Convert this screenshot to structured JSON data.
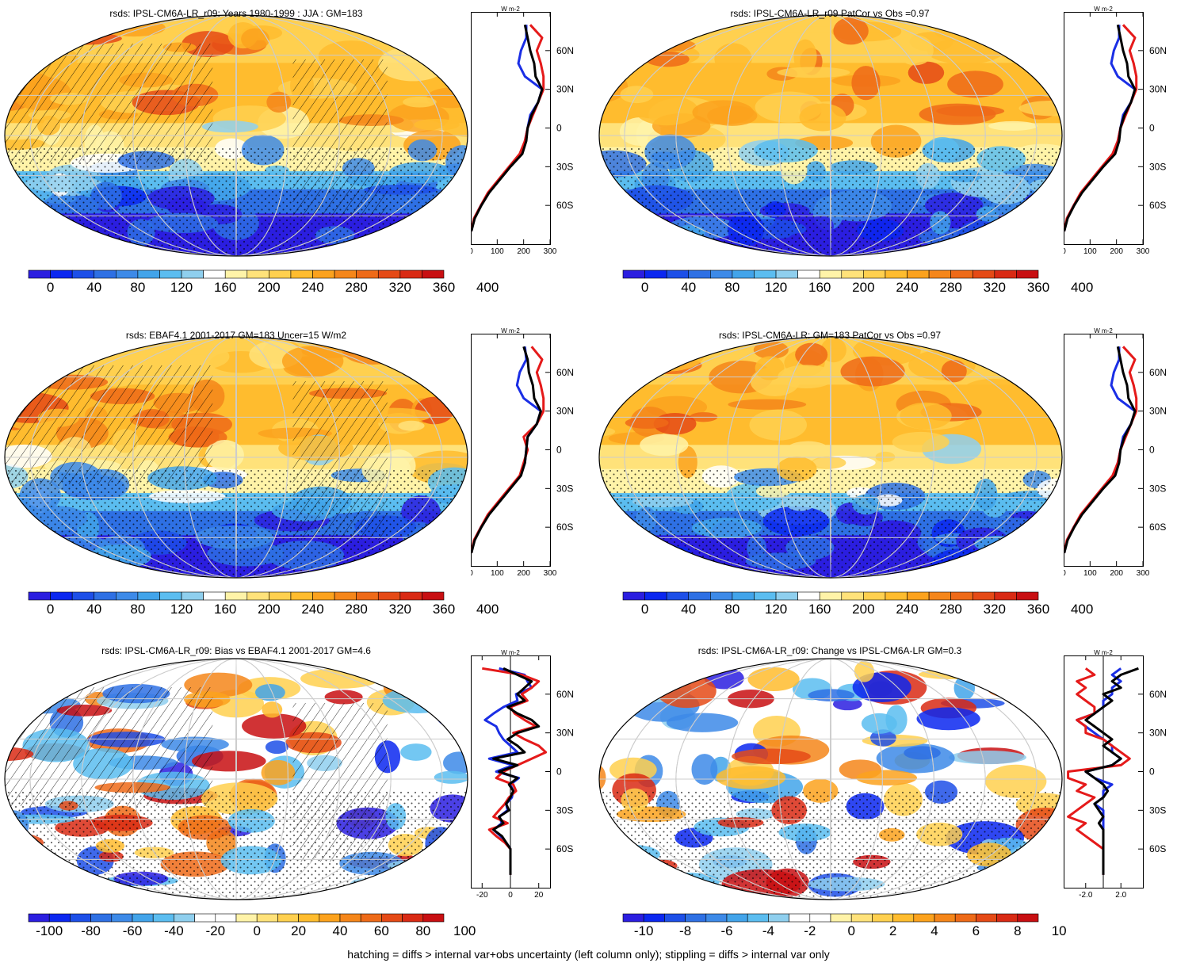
{
  "footnote": "hatching = diffs > internal var+obs uncertainty (left column only); stippling = diffs > internal var only",
  "colors": {
    "absolute_scale": [
      "#2b1ee0",
      "#0b27f0",
      "#1d4fe8",
      "#2e70e4",
      "#3d8ae8",
      "#42a4ea",
      "#5bbdf0",
      "#8fcfee",
      "#ffffff",
      "#fff3a8",
      "#ffe27a",
      "#ffd04f",
      "#ffbc2e",
      "#fca21d",
      "#f5861a",
      "#ee6a18",
      "#e54a16",
      "#d92a14",
      "#c80f12"
    ],
    "diff_scale": [
      "#2b1ee0",
      "#0b27f0",
      "#1d4fe8",
      "#2e70e4",
      "#3d8ae8",
      "#42a4ea",
      "#5bbdf0",
      "#8fcfee",
      "#ffffff",
      "#ffffff",
      "#fff3a8",
      "#ffe27a",
      "#ffd04f",
      "#ffbc2e",
      "#fca21d",
      "#f5861a",
      "#ee6a18",
      "#e54a16",
      "#d92a14",
      "#c80f12"
    ],
    "model_line": "#000000",
    "obs_line": "#e51a1a",
    "ref_line": "#1a2ee5"
  },
  "chart_data": [
    {
      "type": "heatmap",
      "title": "rsds: IPSL-CM6A-LR_r09: Years 1980-1999 : JJA : GM=183",
      "colorbar_ticks": [
        "0",
        "40",
        "80",
        "120",
        "160",
        "200",
        "240",
        "280",
        "320",
        "360",
        "400"
      ],
      "zonal_profile": {
        "unit": "W m-2",
        "x_ticks": [
          "0",
          "100",
          "200",
          "300"
        ],
        "y_ticks": [
          "60N",
          "30N",
          "0",
          "30S",
          "60S"
        ],
        "xlim": [
          0,
          300
        ],
        "lat": [
          80,
          70,
          60,
          50,
          40,
          30,
          20,
          10,
          0,
          -10,
          -20,
          -30,
          -40,
          -50,
          -60,
          -70,
          -80
        ],
        "series": [
          {
            "values": [
              205,
              215,
              225,
              240,
              245,
              270,
              255,
              230,
              215,
              210,
              195,
              150,
              110,
              70,
              40,
              15,
              2
            ]
          },
          {
            "values": [
              225,
              270,
              250,
              265,
              275,
              275,
              255,
              235,
              215,
              205,
              185,
              145,
              105,
              65,
              38,
              12,
              2
            ]
          },
          {
            "values": [
              210,
              210,
              190,
              180,
              205,
              270,
              255,
              225,
              215,
              205,
              190,
              148,
              108,
              68,
              38,
              13,
              2
            ]
          }
        ]
      }
    },
    {
      "type": "heatmap",
      "title": "rsds: IPSL-CM6A-LR_r09 PatCor vs Obs =0.97",
      "colorbar_ticks": [
        "0",
        "40",
        "80",
        "120",
        "160",
        "200",
        "240",
        "280",
        "320",
        "360",
        "400"
      ],
      "zonal_profile": {
        "unit": "W m-2",
        "x_ticks": [
          "0",
          "100",
          "200",
          "300"
        ],
        "y_ticks": [
          "60N",
          "30N",
          "0",
          "30S",
          "60S"
        ],
        "xlim": [
          0,
          300
        ],
        "lat": [
          80,
          70,
          60,
          50,
          40,
          30,
          20,
          10,
          0,
          -10,
          -20,
          -30,
          -40,
          -50,
          -60,
          -70,
          -80
        ],
        "series": [
          {
            "values": [
              205,
              215,
              225,
              240,
              245,
              270,
              255,
              230,
              215,
              210,
              195,
              150,
              110,
              70,
              40,
              15,
              2
            ]
          },
          {
            "values": [
              225,
              270,
              250,
              265,
              275,
              275,
              255,
              235,
              215,
              205,
              185,
              145,
              105,
              65,
              38,
              12,
              2
            ]
          },
          {
            "values": [
              210,
              210,
              190,
              180,
              205,
              270,
              255,
              225,
              215,
              205,
              190,
              148,
              108,
              68,
              38,
              13,
              2
            ]
          }
        ]
      }
    },
    {
      "type": "heatmap",
      "title": "rsds: EBAF4.1 2001-2017 GM=183 Uncer=15 W/m2",
      "colorbar_ticks": [
        "0",
        "40",
        "80",
        "120",
        "160",
        "200",
        "240",
        "280",
        "320",
        "360",
        "400"
      ],
      "zonal_profile": {
        "unit": "W m-2",
        "x_ticks": [
          "0",
          "100",
          "200",
          "300"
        ],
        "y_ticks": [
          "60N",
          "30N",
          "0",
          "30S",
          "60S"
        ],
        "xlim": [
          0,
          300
        ],
        "lat": [
          80,
          70,
          60,
          50,
          40,
          30,
          20,
          10,
          0,
          -10,
          -20,
          -30,
          -40,
          -50,
          -60,
          -70,
          -80
        ],
        "series": [
          {
            "values": [
              200,
              215,
              220,
              235,
              240,
              265,
              250,
              215,
              210,
              205,
              190,
              150,
              110,
              70,
              40,
              15,
              2
            ]
          },
          {
            "values": [
              230,
              270,
              250,
              265,
              275,
              275,
              250,
              200,
              215,
              200,
              185,
              145,
              105,
              65,
              38,
              12,
              2
            ]
          },
          {
            "values": [
              205,
              210,
              185,
              175,
              200,
              265,
              250,
              215,
              210,
              205,
              188,
              148,
              108,
              68,
              38,
              13,
              2
            ]
          }
        ]
      }
    },
    {
      "type": "heatmap",
      "title": "rsds: IPSL-CM6A-LR: GM=183 PatCor vs Obs =0.97",
      "colorbar_ticks": [
        "0",
        "40",
        "80",
        "120",
        "160",
        "200",
        "240",
        "280",
        "320",
        "360",
        "400"
      ],
      "zonal_profile": {
        "unit": "W m-2",
        "x_ticks": [
          "0",
          "100",
          "200",
          "300"
        ],
        "y_ticks": [
          "60N",
          "30N",
          "0",
          "30S",
          "60S"
        ],
        "xlim": [
          0,
          300
        ],
        "lat": [
          80,
          70,
          60,
          50,
          40,
          30,
          20,
          10,
          0,
          -10,
          -20,
          -30,
          -40,
          -50,
          -60,
          -70,
          -80
        ],
        "series": [
          {
            "values": [
              205,
              215,
              225,
              240,
              245,
              270,
              255,
              230,
              215,
              210,
              195,
              150,
              110,
              70,
              40,
              15,
              2
            ]
          },
          {
            "values": [
              225,
              270,
              250,
              265,
              275,
              275,
              255,
              235,
              215,
              205,
              185,
              145,
              105,
              65,
              38,
              12,
              2
            ]
          },
          {
            "values": [
              210,
              210,
              190,
              180,
              205,
              270,
              255,
              225,
              215,
              205,
              190,
              148,
              108,
              68,
              38,
              13,
              2
            ]
          }
        ]
      }
    },
    {
      "type": "heatmap",
      "title": "rsds: IPSL-CM6A-LR_r09: Bias vs EBAF4.1 2001-2017 GM=4.6",
      "colorbar_ticks": [
        "-100",
        "-80",
        "-60",
        "-40",
        "-20",
        "0",
        "20",
        "40",
        "60",
        "80",
        "100"
      ],
      "zonal_profile": {
        "unit": "W m-2",
        "x_ticks": [
          "-20",
          "0",
          "20"
        ],
        "y_ticks": [
          "60N",
          "30N",
          "0",
          "30S",
          "60S"
        ],
        "xlim": [
          -28,
          28
        ],
        "lat": [
          80,
          75,
          70,
          65,
          60,
          55,
          50,
          45,
          40,
          35,
          30,
          25,
          20,
          15,
          10,
          5,
          0,
          -5,
          -10,
          -15,
          -20,
          -25,
          -30,
          -35,
          -40,
          -45,
          -50,
          -55,
          -60,
          -70,
          -80
        ],
        "series": [
          {
            "values": [
              -5,
              5,
              15,
              10,
              5,
              10,
              -2,
              5,
              15,
              20,
              5,
              -2,
              5,
              10,
              -12,
              5,
              -8,
              5,
              -1,
              2,
              0,
              -3,
              -1,
              -8,
              -5,
              -12,
              -6,
              -3,
              0,
              0,
              0
            ]
          },
          {
            "values": [
              -20,
              8,
              20,
              15,
              8,
              12,
              0,
              3,
              10,
              18,
              2,
              10,
              20,
              25,
              15,
              5,
              -5,
              -10,
              2,
              4,
              -1,
              -4,
              -8,
              -12,
              -2,
              -15,
              -10,
              -4,
              0,
              0,
              0
            ]
          },
          {
            "values": [
              -8,
              10,
              12,
              15,
              4,
              5,
              -5,
              -12,
              -18,
              -10,
              -8,
              -5,
              0,
              5,
              -15,
              2,
              -10,
              6,
              0,
              2,
              1,
              -3,
              -2,
              -8,
              -6,
              -12,
              -7,
              -3,
              0,
              0,
              0
            ]
          }
        ]
      }
    },
    {
      "type": "heatmap",
      "title": "rsds: IPSL-CM6A-LR_r09: Change vs IPSL-CM6A-LR GM=0.3",
      "colorbar_ticks": [
        "-10",
        "-8",
        "-6",
        "-4",
        "-2",
        "0",
        "2",
        "4",
        "6",
        "8",
        "10"
      ],
      "zonal_profile": {
        "unit": "W m-2",
        "x_ticks": [
          "-2.0",
          "2.0"
        ],
        "y_ticks": [
          "60N",
          "30N",
          "0",
          "30S",
          "60S"
        ],
        "xlim": [
          -4.5,
          4.5
        ],
        "lat": [
          80,
          75,
          70,
          65,
          60,
          55,
          50,
          45,
          40,
          35,
          30,
          25,
          20,
          15,
          10,
          5,
          0,
          -5,
          -10,
          -15,
          -20,
          -25,
          -30,
          -35,
          -40,
          -45,
          -50,
          -55,
          -60,
          -70,
          -80
        ],
        "series": [
          {
            "values": [
              4,
              2,
              1,
              2,
              0,
              1,
              0,
              -1,
              -2,
              -1,
              0,
              1,
              0,
              1,
              2,
              1,
              -2,
              -1,
              0,
              0.5,
              0,
              -1,
              -0.5,
              0,
              -0.5,
              0,
              0,
              0,
              0,
              0,
              0
            ]
          },
          {
            "values": [
              -2,
              -1,
              -3,
              -2,
              -3,
              -2,
              -1,
              -1,
              -3,
              -2,
              -2,
              0,
              1,
              2,
              3,
              2,
              -4,
              -4,
              -2,
              -3,
              -1,
              -2,
              -3,
              -4,
              -2,
              -3,
              -2,
              -1,
              0,
              0,
              0
            ]
          },
          {
            "values": [
              2,
              1,
              2,
              1,
              1,
              0,
              0,
              -1,
              -3,
              -2,
              -1,
              0,
              1,
              1,
              2,
              1,
              -2,
              -1,
              1,
              0,
              0,
              -1,
              0,
              0,
              0,
              0,
              0,
              0,
              0,
              0,
              0
            ]
          }
        ]
      }
    }
  ]
}
